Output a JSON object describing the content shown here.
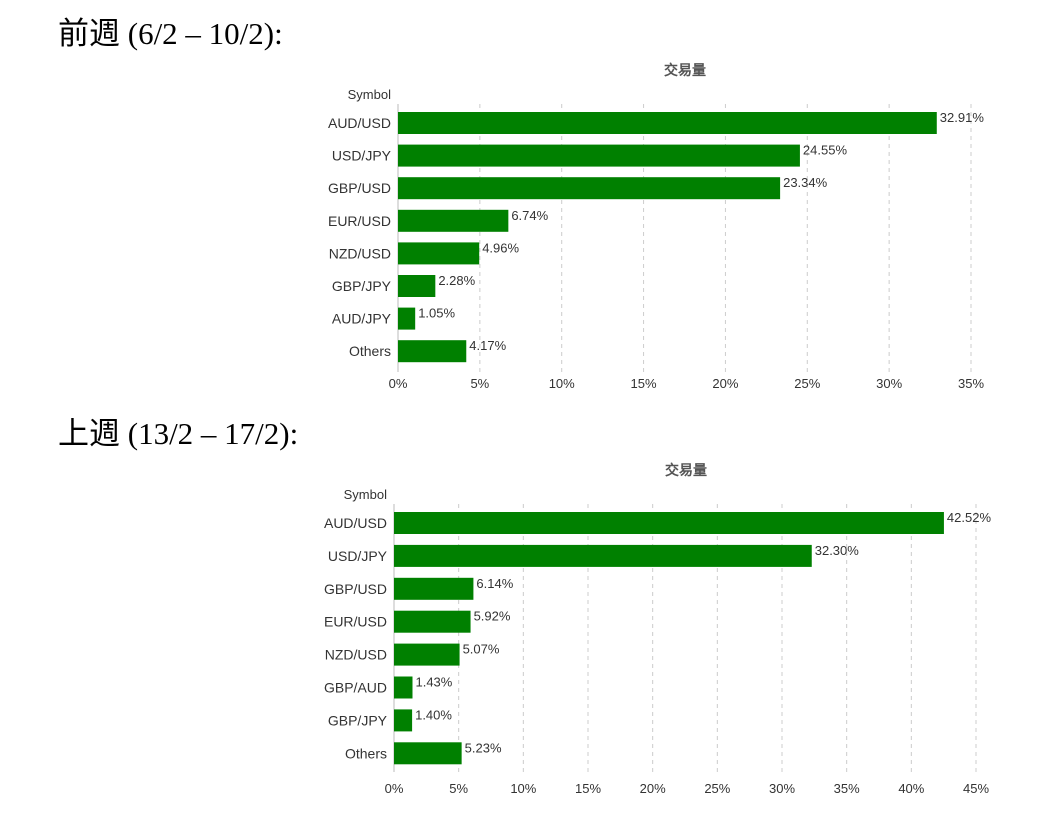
{
  "headings": [
    "前週 (6/2 – 10/2):",
    "上週 (13/2 – 17/2):"
  ],
  "chart_data": [
    {
      "type": "bar",
      "orientation": "horizontal",
      "title": "交易量",
      "ylabel": "Symbol",
      "xlabel": "",
      "categories": [
        "AUD/USD",
        "USD/JPY",
        "GBP/USD",
        "EUR/USD",
        "NZD/USD",
        "GBP/JPY",
        "AUD/JPY",
        "Others"
      ],
      "values": [
        32.91,
        24.55,
        23.34,
        6.74,
        4.96,
        2.28,
        1.05,
        4.17
      ],
      "value_labels": [
        "32.91%",
        "24.55%",
        "23.34%",
        "6.74%",
        "4.96%",
        "2.28%",
        "1.05%",
        "4.17%"
      ],
      "xlim": [
        0,
        35
      ],
      "xticks": [
        "0%",
        "5%",
        "10%",
        "15%",
        "20%",
        "25%",
        "30%",
        "35%"
      ],
      "grid": true,
      "bar_color": "#008000"
    },
    {
      "type": "bar",
      "orientation": "horizontal",
      "title": "交易量",
      "ylabel": "Symbol",
      "xlabel": "",
      "categories": [
        "AUD/USD",
        "USD/JPY",
        "GBP/USD",
        "EUR/USD",
        "NZD/USD",
        "GBP/AUD",
        "GBP/JPY",
        "Others"
      ],
      "values": [
        42.52,
        32.3,
        6.14,
        5.92,
        5.07,
        1.43,
        1.4,
        5.23
      ],
      "value_labels": [
        "42.52%",
        "32.30%",
        "6.14%",
        "5.92%",
        "5.07%",
        "1.43%",
        "1.40%",
        "5.23%"
      ],
      "xlim": [
        0,
        45
      ],
      "xticks": [
        "0%",
        "5%",
        "10%",
        "15%",
        "20%",
        "25%",
        "30%",
        "35%",
        "40%",
        "45%"
      ],
      "grid": true,
      "bar_color": "#008000"
    }
  ]
}
